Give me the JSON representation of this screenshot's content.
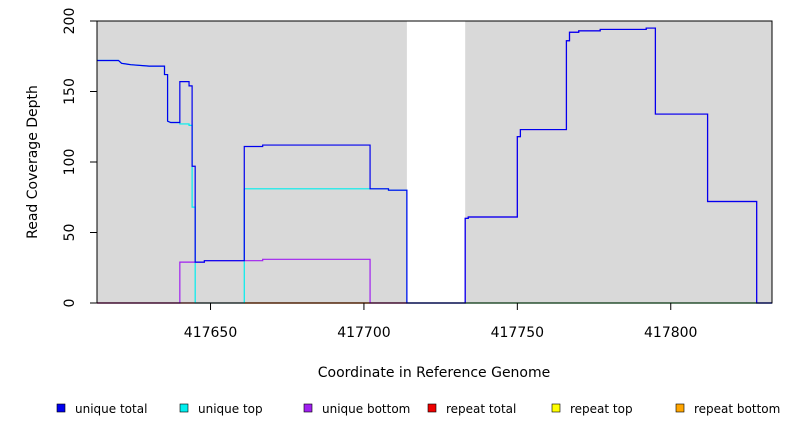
{
  "chart_data": {
    "type": "line",
    "title": "",
    "xlabel": "Coordinate in Reference Genome",
    "ylabel": "Read Coverage Depth",
    "xlim": [
      417613,
      417833
    ],
    "ylim": [
      0,
      200
    ],
    "x_ticks": [
      417650,
      417700,
      417750,
      417800
    ],
    "x_tick_labels": [
      "417650",
      "417700",
      "417750",
      "417800"
    ],
    "y_ticks": [
      0,
      50,
      100,
      150,
      200
    ],
    "y_tick_labels": [
      "0",
      "50",
      "100",
      "150",
      "200"
    ],
    "background_color": "#d9d9d9",
    "shaded_regions": [
      [
        417613,
        417714
      ],
      [
        417733,
        417833
      ]
    ],
    "legend": {
      "placement": "bottom",
      "items": [
        {
          "label": "unique total",
          "color": "#0000ee"
        },
        {
          "label": "unique top",
          "color": "#00eeee"
        },
        {
          "label": "unique bottom",
          "color": "#a020f0"
        },
        {
          "label": "repeat total",
          "color": "#ee0000"
        },
        {
          "label": "repeat top",
          "color": "#ffff00"
        },
        {
          "label": "repeat bottom",
          "color": "#ffa500"
        }
      ]
    },
    "series": [
      {
        "name": "unique total",
        "color": "#0000ee",
        "points": [
          [
            417613,
            172
          ],
          [
            417620,
            172
          ],
          [
            417621,
            170
          ],
          [
            417624,
            169
          ],
          [
            417630,
            168
          ],
          [
            417635,
            168
          ],
          [
            417635,
            162
          ],
          [
            417636,
            162
          ],
          [
            417636,
            129
          ],
          [
            417637,
            128
          ],
          [
            417640,
            128
          ],
          [
            417640,
            157
          ],
          [
            417643,
            157
          ],
          [
            417643,
            154
          ],
          [
            417644,
            154
          ],
          [
            417644,
            97
          ],
          [
            417645,
            97
          ],
          [
            417645,
            29
          ],
          [
            417648,
            29
          ],
          [
            417648,
            30
          ],
          [
            417661,
            30
          ],
          [
            417661,
            111
          ],
          [
            417667,
            111
          ],
          [
            417667,
            112
          ],
          [
            417702,
            112
          ],
          [
            417702,
            81
          ],
          [
            417708,
            81
          ],
          [
            417708,
            80
          ],
          [
            417714,
            80
          ],
          [
            417714,
            0
          ],
          [
            417733,
            0
          ],
          [
            417733,
            60
          ],
          [
            417734,
            60
          ],
          [
            417734,
            61
          ],
          [
            417750,
            61
          ],
          [
            417750,
            118
          ],
          [
            417751,
            118
          ],
          [
            417751,
            123
          ],
          [
            417766,
            123
          ],
          [
            417766,
            186
          ],
          [
            417767,
            186
          ],
          [
            417767,
            192
          ],
          [
            417770,
            192
          ],
          [
            417770,
            193
          ],
          [
            417777,
            193
          ],
          [
            417777,
            194
          ],
          [
            417792,
            194
          ],
          [
            417792,
            195
          ],
          [
            417795,
            195
          ],
          [
            417795,
            134
          ],
          [
            417812,
            134
          ],
          [
            417812,
            72
          ],
          [
            417828,
            72
          ],
          [
            417828,
            0
          ],
          [
            417833,
            0
          ]
        ]
      },
      {
        "name": "unique top",
        "color": "#00eeee",
        "points": [
          [
            417613,
            172
          ],
          [
            417620,
            172
          ],
          [
            417621,
            170
          ],
          [
            417624,
            169
          ],
          [
            417630,
            168
          ],
          [
            417635,
            168
          ],
          [
            417635,
            162
          ],
          [
            417636,
            162
          ],
          [
            417636,
            129
          ],
          [
            417637,
            128
          ],
          [
            417640,
            128
          ],
          [
            417640,
            127
          ],
          [
            417643,
            127
          ],
          [
            417643,
            126
          ],
          [
            417644,
            126
          ],
          [
            417644,
            68
          ],
          [
            417645,
            68
          ],
          [
            417645,
            0
          ],
          [
            417661,
            0
          ],
          [
            417661,
            81
          ],
          [
            417702,
            81
          ],
          [
            417702,
            81
          ],
          [
            417708,
            81
          ],
          [
            417708,
            80
          ],
          [
            417714,
            80
          ],
          [
            417714,
            0
          ],
          [
            417833,
            0
          ]
        ]
      },
      {
        "name": "unique bottom",
        "color": "#a020f0",
        "points": [
          [
            417613,
            0
          ],
          [
            417640,
            0
          ],
          [
            417640,
            29
          ],
          [
            417645,
            29
          ],
          [
            417645,
            29
          ],
          [
            417648,
            29
          ],
          [
            417648,
            30
          ],
          [
            417661,
            30
          ],
          [
            417661,
            30
          ],
          [
            417667,
            30
          ],
          [
            417667,
            31
          ],
          [
            417702,
            31
          ],
          [
            417702,
            0
          ],
          [
            417733,
            0
          ],
          [
            417733,
            60
          ],
          [
            417734,
            60
          ],
          [
            417734,
            61
          ],
          [
            417750,
            61
          ],
          [
            417750,
            118
          ],
          [
            417751,
            118
          ],
          [
            417751,
            123
          ],
          [
            417766,
            123
          ],
          [
            417766,
            186
          ],
          [
            417767,
            186
          ],
          [
            417767,
            192
          ],
          [
            417770,
            192
          ],
          [
            417770,
            193
          ],
          [
            417777,
            193
          ],
          [
            417777,
            194
          ],
          [
            417792,
            194
          ],
          [
            417792,
            195
          ],
          [
            417795,
            195
          ],
          [
            417795,
            134
          ],
          [
            417812,
            134
          ],
          [
            417812,
            72
          ],
          [
            417828,
            72
          ],
          [
            417828,
            0
          ],
          [
            417833,
            0
          ]
        ]
      },
      {
        "name": "repeat total",
        "color": "#ee0000",
        "points": [
          [
            417613,
            0
          ],
          [
            417714,
            0
          ]
        ]
      },
      {
        "name": "repeat top",
        "color": "#ffff00",
        "points": [
          [
            417733,
            0
          ],
          [
            417828,
            0
          ]
        ]
      },
      {
        "name": "repeat bottom",
        "color": "#ffa500",
        "points": [
          [
            417661,
            0
          ],
          [
            417702,
            0
          ]
        ]
      }
    ]
  }
}
